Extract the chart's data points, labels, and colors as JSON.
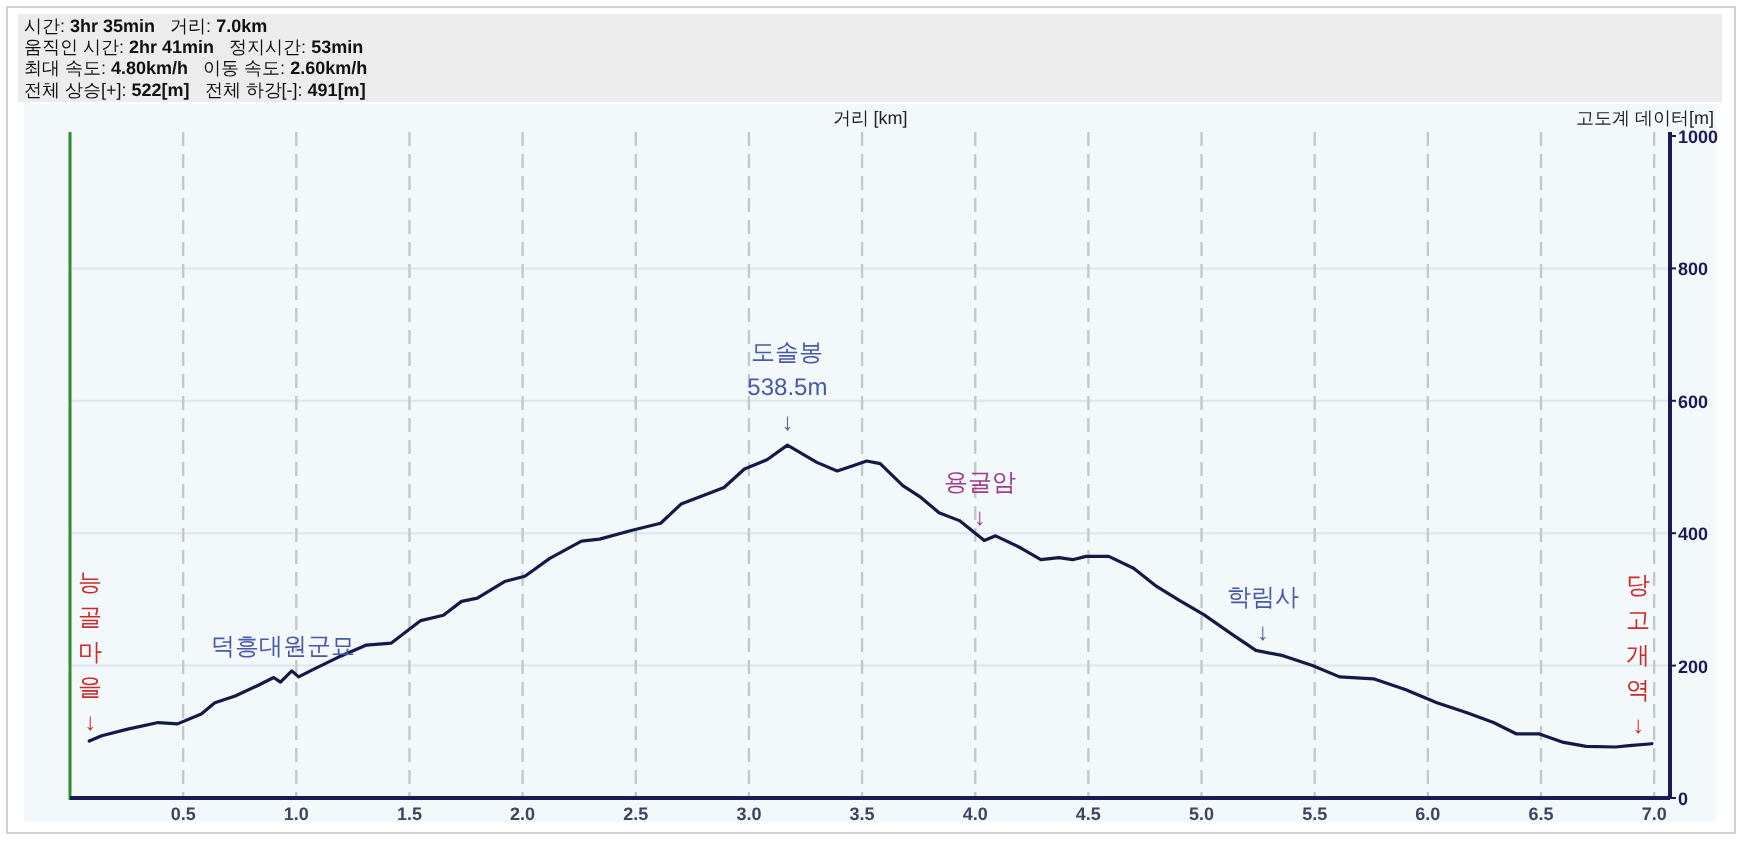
{
  "chart_data": {
    "type": "line",
    "xlabel": "거리 [km]",
    "ylabel": "고도계 데이터[m]",
    "xlim": [
      0,
      7.07
    ],
    "xticks": [
      {
        "value": 0.5,
        "label": "0.5"
      },
      {
        "value": 1,
        "label": "1.0"
      },
      {
        "value": 1.5,
        "label": "1.5"
      },
      {
        "value": 2,
        "label": "2.0"
      },
      {
        "value": 2.5,
        "label": "2.5"
      },
      {
        "value": 3,
        "label": "3.0"
      },
      {
        "value": 3.5,
        "label": "3.5"
      },
      {
        "value": 4,
        "label": "4.0"
      },
      {
        "value": 4.5,
        "label": "4.5"
      },
      {
        "value": 5,
        "label": "5.0"
      },
      {
        "value": 5.5,
        "label": "5.5"
      },
      {
        "value": 6,
        "label": "6.0"
      },
      {
        "value": 6.5,
        "label": "6.5"
      },
      {
        "value": 7,
        "label": "7.0"
      }
    ],
    "ylim": [
      0,
      1000
    ],
    "yticks": [
      0,
      200,
      400,
      600,
      800,
      1000
    ],
    "grid": true,
    "series": [
      {
        "color": "#141a46",
        "x": [
          0.085,
          0.14,
          0.255,
          0.39,
          0.475,
          0.58,
          0.64,
          0.73,
          0.83,
          0.9,
          0.93,
          0.98,
          1.01,
          1.08,
          1.2,
          1.31,
          1.42,
          1.55,
          1.65,
          1.73,
          1.8,
          1.92,
          2.01,
          2.12,
          2.26,
          2.34,
          2.48,
          2.61,
          2.7,
          2.83,
          2.89,
          2.98,
          3.08,
          3.17,
          3.3,
          3.39,
          3.46,
          3.52,
          3.58,
          3.68,
          3.76,
          3.84,
          3.93,
          4.04,
          4.09,
          4.2,
          4.29,
          4.37,
          4.43,
          4.49,
          4.59,
          4.7,
          4.8,
          4.9,
          5.01,
          5.14,
          5.24,
          5.36,
          5.49,
          5.61,
          5.76,
          5.9,
          6.04,
          6.17,
          6.29,
          6.39,
          6.49,
          6.6,
          6.7,
          6.83,
          6.89,
          6.99
        ],
        "values": [
          86,
          94,
          104,
          114,
          112,
          127,
          144,
          154,
          170,
          182,
          175,
          192,
          183,
          195,
          215,
          231,
          234,
          268,
          276,
          297,
          302,
          327,
          335,
          362,
          388,
          391,
          404,
          415,
          444,
          461,
          469,
          497,
          511,
          533,
          507,
          494,
          502,
          509,
          505,
          472,
          454,
          431,
          419,
          389,
          396,
          378,
          360,
          363,
          360,
          365,
          365,
          347,
          320,
          299,
          277,
          246,
          223,
          215,
          200,
          183,
          180,
          164,
          144,
          129,
          114,
          97,
          97,
          84,
          78,
          77,
          79,
          82
        ]
      }
    ],
    "annotations": [
      "시간: 3hr 35min  거리: 7.0km",
      "움직인 시간: 2hr 41min  정지시간: 53min",
      "최대 속도: 4.80km/h  이동 속도: 2.60km/h",
      "전체 상승[+]: 522[m]  전체 하강[-]: 491[m]",
      {
        "text": "능\n골\n마\n을\n↓",
        "x": 0.09,
        "y": 85
      },
      {
        "text": "덕흥대원군묘",
        "x": 0.94,
        "y": 200
      },
      {
        "text": "도솔봉\n538.5m\n↓",
        "x": 3.17,
        "y": 538.5
      },
      {
        "text": "용굴암\n↓",
        "x": 4.02,
        "y": 395
      },
      {
        "text": "학림사\n↓",
        "x": 5.27,
        "y": 220
      },
      {
        "text": "당\n고\n개\n역\n↓",
        "x": 6.93,
        "y": 80
      }
    ]
  }
}
